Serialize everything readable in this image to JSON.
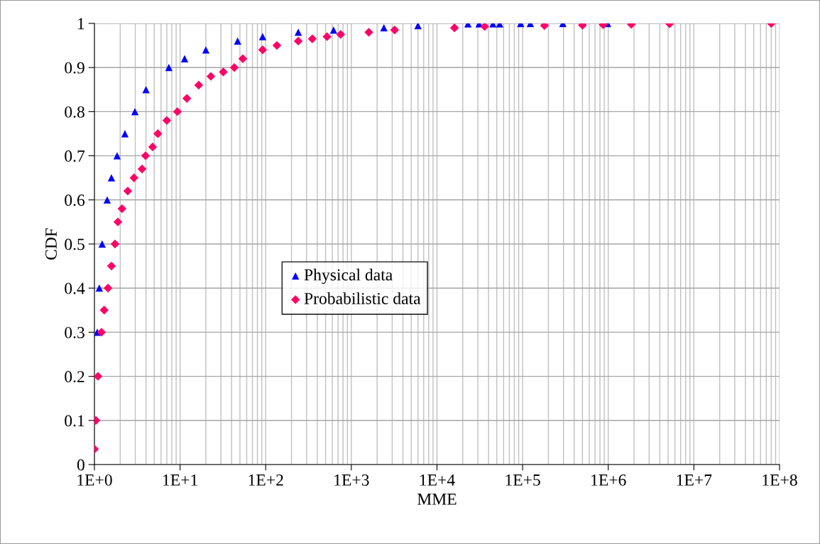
{
  "chart_data": {
    "type": "scatter",
    "xlabel": "MME",
    "ylabel": "CDF",
    "log": "x",
    "grid": true,
    "legend": "center",
    "xlim": [
      1,
      100000000
    ],
    "ylim": [
      0,
      1
    ],
    "xticks": [
      {
        "value": 1,
        "label": "1E+0"
      },
      {
        "value": 10,
        "label": "1E+1"
      },
      {
        "value": 100,
        "label": "1E+2"
      },
      {
        "value": 1000,
        "label": "1E+3"
      },
      {
        "value": 10000,
        "label": "1E+4"
      },
      {
        "value": 100000,
        "label": "1E+5"
      },
      {
        "value": 1000000,
        "label": "1E+6"
      },
      {
        "value": 10000000,
        "label": "1E+7"
      },
      {
        "value": 100000000,
        "label": "1E+8"
      }
    ],
    "yticks": [
      0,
      0.1,
      0.2,
      0.3,
      0.4,
      0.5,
      0.6,
      0.7,
      0.8,
      0.9,
      1
    ],
    "series": [
      {
        "name": "Physical data",
        "color": "#0000ff",
        "marker": "triangle",
        "x": [
          1.08,
          1.14,
          1.23,
          1.41,
          1.58,
          1.84,
          2.27,
          2.97,
          4.0,
          7.4,
          11.3,
          20,
          47,
          92,
          240,
          620,
          2400,
          6000,
          23000,
          31000,
          45000,
          54000,
          95000,
          123000,
          295000,
          980000
        ],
        "values": [
          0.3,
          0.4,
          0.5,
          0.6,
          0.65,
          0.7,
          0.75,
          0.8,
          0.85,
          0.9,
          0.92,
          0.94,
          0.96,
          0.97,
          0.98,
          0.985,
          0.99,
          0.995,
          0.999,
          0.999,
          0.999,
          0.999,
          1,
          1,
          1,
          1
        ]
      },
      {
        "name": "Probabilistic data",
        "color": "#ff0066",
        "marker": "diamond",
        "x": [
          1.0,
          1.04,
          1.1,
          1.21,
          1.3,
          1.44,
          1.58,
          1.74,
          1.88,
          2.1,
          2.45,
          2.9,
          3.6,
          3.95,
          4.78,
          5.5,
          7.0,
          9.3,
          12,
          16.5,
          22.9,
          32,
          43,
          54,
          92,
          135,
          240,
          350,
          520,
          750,
          1600,
          3200,
          16000,
          36000,
          180000,
          500000,
          870000,
          1860000,
          5200000,
          80000000
        ],
        "values": [
          0.035,
          0.1,
          0.2,
          0.3,
          0.35,
          0.4,
          0.45,
          0.5,
          0.55,
          0.58,
          0.62,
          0.65,
          0.67,
          0.7,
          0.72,
          0.75,
          0.78,
          0.8,
          0.83,
          0.86,
          0.88,
          0.89,
          0.9,
          0.92,
          0.94,
          0.95,
          0.96,
          0.965,
          0.97,
          0.975,
          0.98,
          0.985,
          0.99,
          0.993,
          0.995,
          0.996,
          0.997,
          0.998,
          0.999,
          1
        ]
      }
    ]
  }
}
